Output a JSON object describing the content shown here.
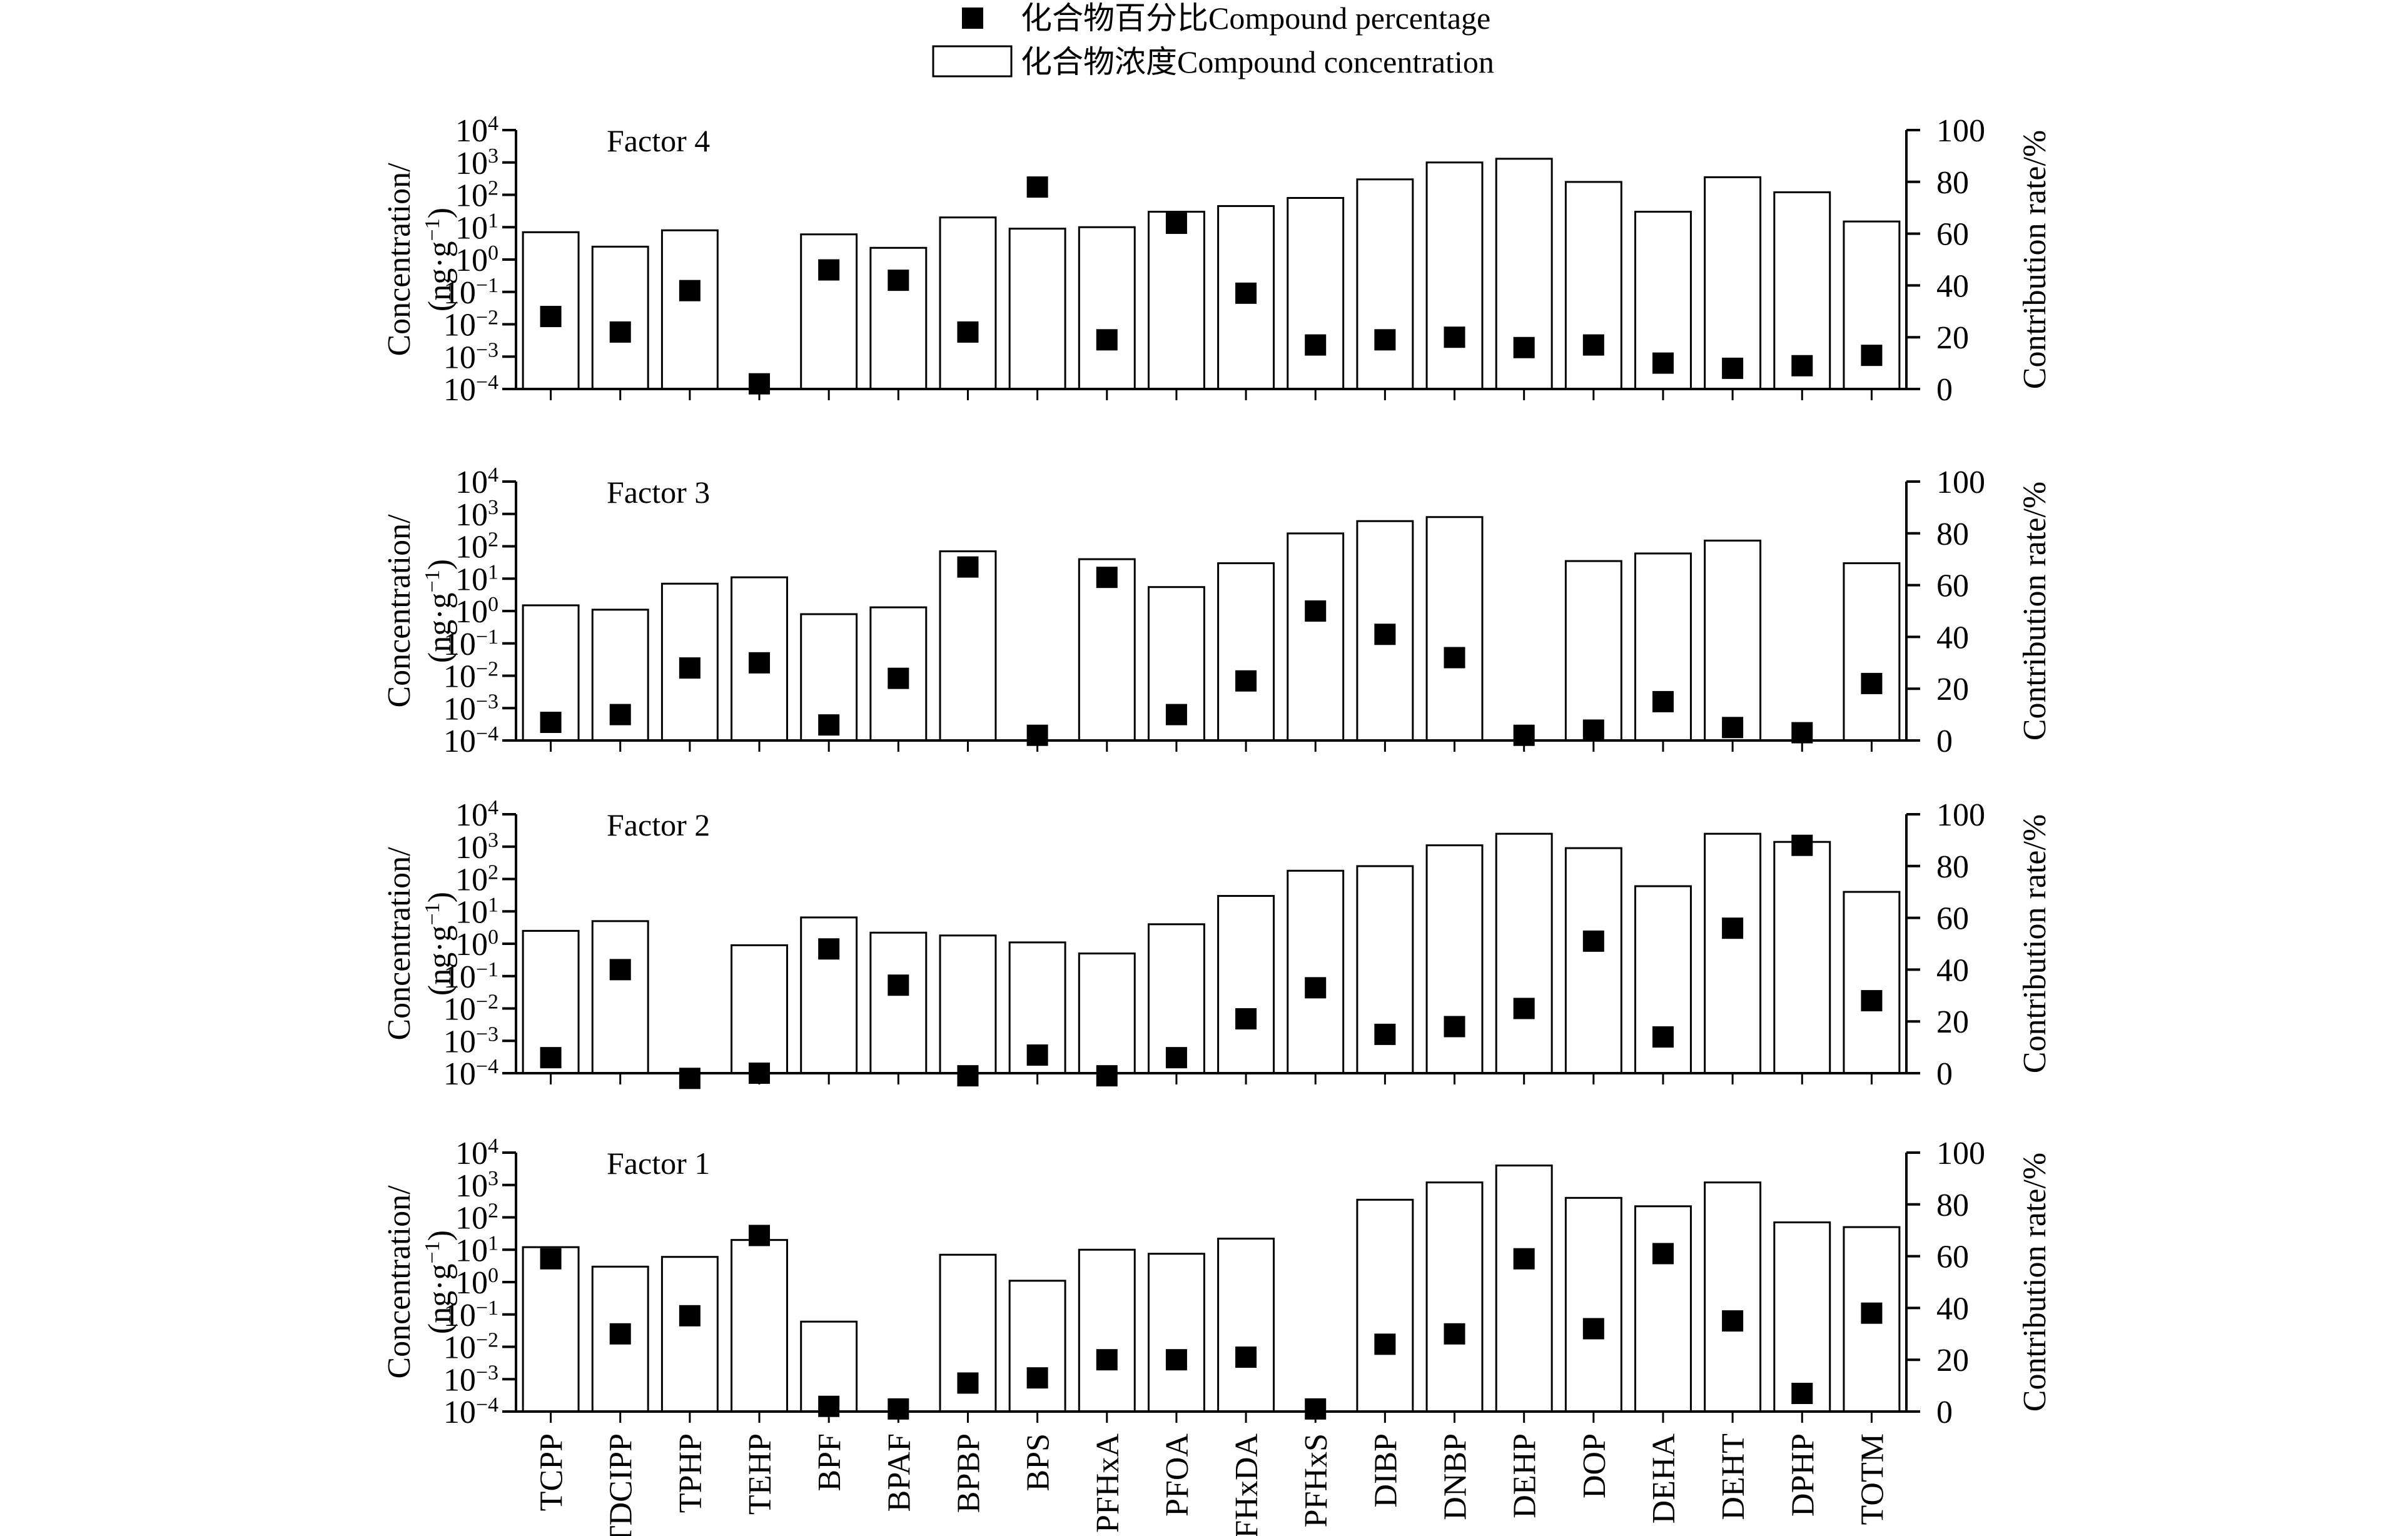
{
  "legend": {
    "percentage_label": "化合物百分比Compound percentage",
    "concentration_label": "化合物浓度Compound concentration"
  },
  "axes": {
    "left_title_line1": "Concentration/",
    "left_title_line2_base": "(ng·g",
    "left_title_line2_sup": "−1",
    "left_title_line2_end": ")",
    "right_title": "Contribution rate/%",
    "left_ticks": [
      {
        "base": "10",
        "exp": "4"
      },
      {
        "base": "10",
        "exp": "3"
      },
      {
        "base": "10",
        "exp": "2"
      },
      {
        "base": "10",
        "exp": "1"
      },
      {
        "base": "10",
        "exp": "0"
      },
      {
        "base": "10",
        "exp": "−1"
      },
      {
        "base": "10",
        "exp": "−2"
      },
      {
        "base": "10",
        "exp": "−3"
      },
      {
        "base": "10",
        "exp": "−4"
      }
    ],
    "right_ticks": [
      "100",
      "80",
      "60",
      "40",
      "20",
      "0"
    ]
  },
  "chart_data": {
    "type": "bar",
    "categories": [
      "TCPP",
      "TDCIPP",
      "TPHP",
      "TEHP",
      "BPF",
      "BPAF",
      "BPBP",
      "BPS",
      "PFHxA",
      "PFOA",
      "PFHxDA",
      "PFHxS",
      "DIBP",
      "DNBP",
      "DEHP",
      "DOP",
      "DEHA",
      "DEHT",
      "DPHP",
      "TOTM"
    ],
    "y_left": {
      "label": "Concentration/(ng·g⁻¹)",
      "scale": "log",
      "range": [
        0.0001,
        10000
      ]
    },
    "y_right": {
      "label": "Contribution rate/%",
      "range": [
        0,
        100
      ]
    },
    "panels": [
      {
        "name": "Factor 4",
        "concentration": [
          7,
          2.5,
          8,
          null,
          6,
          2.3,
          20,
          9,
          10,
          30,
          45,
          80,
          300,
          1000,
          1300,
          250,
          30,
          350,
          120,
          15
        ],
        "percentage": [
          28,
          22,
          38,
          2,
          46,
          42,
          22,
          78,
          19,
          64,
          37,
          17,
          19,
          20,
          16,
          17,
          10,
          8,
          9,
          13
        ]
      },
      {
        "name": "Factor 3",
        "concentration": [
          1.5,
          1.1,
          7,
          11,
          0.8,
          1.3,
          70,
          null,
          40,
          5.5,
          30,
          250,
          600,
          800,
          null,
          35,
          60,
          150,
          null,
          30
        ],
        "percentage": [
          7,
          10,
          28,
          30,
          6,
          24,
          67,
          2,
          63,
          10,
          23,
          50,
          41,
          32,
          2,
          4,
          15,
          5,
          3,
          22
        ]
      },
      {
        "name": "Factor 2",
        "concentration": [
          2.5,
          5,
          null,
          0.9,
          6.5,
          2.2,
          1.8,
          1.1,
          0.5,
          4,
          30,
          180,
          250,
          1100,
          2500,
          900,
          60,
          2500,
          1400,
          40
        ],
        "percentage": [
          6,
          40,
          -2,
          0,
          48,
          34,
          -1,
          7,
          -1,
          6,
          21,
          33,
          15,
          18,
          25,
          51,
          14,
          56,
          88,
          28
        ]
      },
      {
        "name": "Factor 1",
        "concentration": [
          12,
          3,
          6,
          20,
          0.06,
          null,
          7,
          1.1,
          10,
          7.5,
          22,
          0.0001,
          350,
          1200,
          4000,
          400,
          220,
          1200,
          70,
          50
        ],
        "percentage": [
          59,
          30,
          37,
          68,
          2,
          1,
          11,
          13,
          20,
          20,
          21,
          1,
          26,
          30,
          59,
          32,
          61,
          35,
          7,
          38
        ]
      }
    ]
  }
}
